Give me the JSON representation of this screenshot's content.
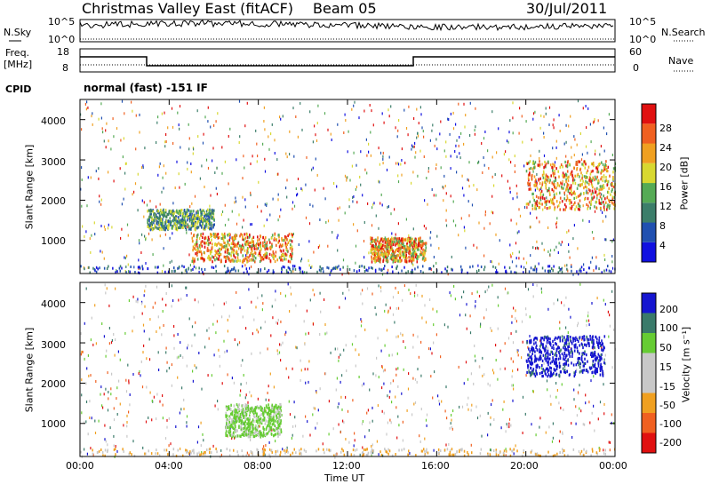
{
  "header": {
    "title": "Christmas Valley East (fitACF)",
    "beam": "Beam 05",
    "date": "30/Jul/2011"
  },
  "panels": {
    "nsky_label": "N.Sky",
    "nsearch_label": "N.Search",
    "freq_label_line1": "Freq.",
    "freq_label_line2": "[MHz]",
    "nave_label": "Nave",
    "cpid_label": "CPID",
    "cpid_text": "normal (fast) -151 IF",
    "nsky_ticks": [
      "10^5",
      "10^0"
    ],
    "nsearch_ticks": [
      "10^5",
      "10^0"
    ],
    "freq_ticks": [
      "18",
      "8"
    ],
    "nave_ticks": [
      "60",
      "0"
    ]
  },
  "chart_data": [
    {
      "type": "heatmap",
      "title": "",
      "ylabel": "Slant Range [km]",
      "xlabel": "",
      "ylim": [
        180,
        4500
      ],
      "y_ticks": [
        "1000",
        "2000",
        "3000",
        "4000"
      ],
      "colorbar_label": "Power [dB]",
      "colorbar_ticks": [
        "4",
        "8",
        "12",
        "16",
        "20",
        "24",
        "28"
      ],
      "colorbar_colors": [
        "#1010e0",
        "#2050b0",
        "#3c7e6a",
        "#55aa55",
        "#d8d830",
        "#f0a020",
        "#f06020",
        "#e01010"
      ],
      "features": [
        {
          "x_start": "05:00",
          "x_end": "09:30",
          "range_low": 500,
          "range_high": 1200,
          "level": "high"
        },
        {
          "x_start": "13:00",
          "x_end": "15:30",
          "range_low": 500,
          "range_high": 1100,
          "level": "high"
        },
        {
          "x_start": "20:00",
          "x_end": "24:00",
          "range_low": 1800,
          "range_high": 3000,
          "level": "high"
        },
        {
          "x_start": "03:00",
          "x_end": "06:00",
          "range_low": 1300,
          "range_high": 1800,
          "level": "medium"
        }
      ]
    },
    {
      "type": "heatmap",
      "title": "",
      "ylabel": "Slant Range [km]",
      "xlabel": "Time UT",
      "ylim": [
        180,
        4500
      ],
      "y_ticks": [
        "1000",
        "2000",
        "3000",
        "4000"
      ],
      "x_ticks": [
        "00:00",
        "04:00",
        "08:00",
        "12:00",
        "16:00",
        "20:00",
        "00:00"
      ],
      "colorbar_label": "Velocity [m s⁻¹]",
      "colorbar_ticks": [
        "200",
        "100",
        "50",
        "15",
        "-15",
        "-50",
        "-100",
        "-200"
      ],
      "colorbar_colors": [
        "#1515d0",
        "#3a7a6a",
        "#66cc33",
        "#c8c8c8",
        "#c8c8c8",
        "#f0a020",
        "#f06020",
        "#e01010"
      ],
      "features": [
        {
          "x_start": "20:00",
          "x_end": "23:30",
          "range_low": 2200,
          "range_high": 3200,
          "level": "positive"
        },
        {
          "x_start": "06:30",
          "x_end": "09:00",
          "range_low": 700,
          "range_high": 1500,
          "level": "slight-positive"
        }
      ]
    }
  ]
}
